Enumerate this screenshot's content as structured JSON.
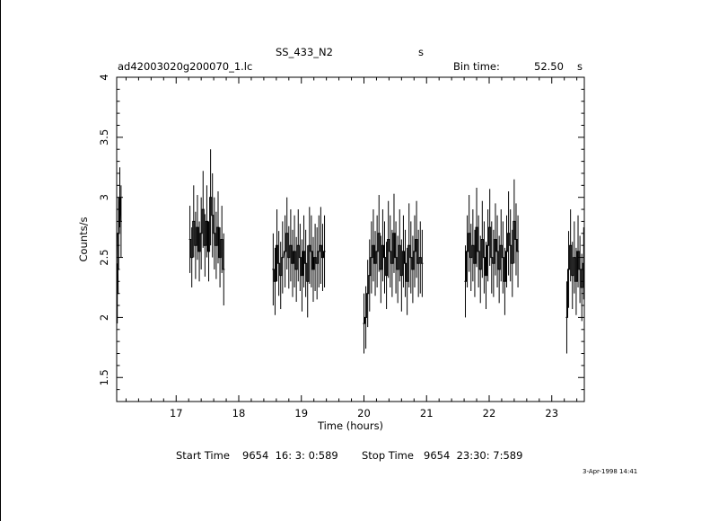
{
  "header": {
    "title": "SS_433_N2",
    "title_suffix": "s",
    "filename": "ad42003020g200070_1.lc",
    "bin_label": "Bin time:",
    "bin_value": "52.50",
    "bin_unit": "s"
  },
  "footer": {
    "start_label": "Start Time",
    "start_value": "9654  16: 3: 0:589",
    "stop_label": "Stop Time",
    "stop_value": "9654  23:30: 7:589",
    "timestamp": "3-Apr-1998 14:41"
  },
  "chart_data": {
    "type": "line",
    "xlabel": "Time (hours)",
    "ylabel": "Counts/s",
    "xlim": [
      16.05,
      23.52
    ],
    "ylim": [
      1.3,
      4.0
    ],
    "xticks": [
      17,
      18,
      19,
      20,
      21,
      22,
      23
    ],
    "yticks": [
      1.5,
      2,
      2.5,
      3,
      3.5,
      4
    ],
    "ytick_labels": [
      "1.5",
      "2",
      "2.5",
      "3",
      "3.5",
      "4"
    ],
    "grid": false,
    "segments": [
      {
        "x": [
          16.06,
          16.08,
          16.1,
          16.12
        ],
        "y": [
          2.2,
          2.7,
          3.0,
          2.8
        ],
        "err": [
          0.25,
          0.3,
          0.25,
          0.3
        ]
      },
      {
        "x": [
          17.22,
          17.25,
          17.28,
          17.31,
          17.34,
          17.37,
          17.4,
          17.43,
          17.46,
          17.49,
          17.52,
          17.55,
          17.58,
          17.61,
          17.64,
          17.67,
          17.7,
          17.73,
          17.76
        ],
        "y": [
          2.65,
          2.5,
          2.8,
          2.6,
          2.75,
          2.55,
          2.7,
          2.9,
          2.6,
          2.8,
          2.55,
          3.0,
          2.85,
          2.7,
          2.6,
          2.75,
          2.5,
          2.65,
          2.4
        ],
        "err": [
          0.28,
          0.25,
          0.3,
          0.28,
          0.27,
          0.25,
          0.3,
          0.32,
          0.26,
          0.3,
          0.25,
          0.4,
          0.35,
          0.3,
          0.28,
          0.3,
          0.25,
          0.28,
          0.3
        ]
      },
      {
        "x": [
          18.55,
          18.58,
          18.61,
          18.64,
          18.67,
          18.7,
          18.74,
          18.77,
          18.8,
          18.83,
          18.86,
          18.89,
          18.92,
          18.95,
          18.98,
          19.01,
          19.04,
          19.07,
          19.1,
          19.13,
          19.16,
          19.19,
          19.22,
          19.25,
          19.28,
          19.31,
          19.34,
          19.37
        ],
        "y": [
          2.4,
          2.3,
          2.6,
          2.45,
          2.35,
          2.5,
          2.55,
          2.7,
          2.5,
          2.6,
          2.45,
          2.55,
          2.4,
          2.6,
          2.5,
          2.35,
          2.55,
          2.45,
          2.3,
          2.6,
          2.55,
          2.4,
          2.5,
          2.45,
          2.55,
          2.6,
          2.5,
          2.55
        ],
        "err": [
          0.3,
          0.28,
          0.3,
          0.27,
          0.28,
          0.3,
          0.3,
          0.3,
          0.26,
          0.3,
          0.28,
          0.3,
          0.27,
          0.3,
          0.28,
          0.3,
          0.3,
          0.28,
          0.3,
          0.32,
          0.3,
          0.27,
          0.28,
          0.3,
          0.3,
          0.32,
          0.28,
          0.3
        ]
      },
      {
        "x": [
          20.0,
          20.03,
          20.06,
          20.09,
          20.12,
          20.15,
          20.18,
          20.21,
          20.24,
          20.27,
          20.3,
          20.33,
          20.36,
          20.39,
          20.42,
          20.45,
          20.48,
          20.51,
          20.54,
          20.57,
          20.6,
          20.63,
          20.66,
          20.69,
          20.72,
          20.75,
          20.78,
          20.81,
          20.84,
          20.87,
          20.9,
          20.93
        ],
        "y": [
          1.95,
          2.0,
          2.2,
          2.35,
          2.5,
          2.6,
          2.45,
          2.55,
          2.7,
          2.4,
          2.6,
          2.5,
          2.35,
          2.65,
          2.55,
          2.45,
          2.7,
          2.5,
          2.4,
          2.6,
          2.35,
          2.55,
          2.45,
          2.3,
          2.6,
          2.5,
          2.4,
          2.55,
          2.65,
          2.45,
          2.5,
          2.45
        ],
        "err": [
          0.25,
          0.26,
          0.28,
          0.3,
          0.3,
          0.3,
          0.27,
          0.3,
          0.32,
          0.28,
          0.3,
          0.3,
          0.28,
          0.32,
          0.3,
          0.28,
          0.33,
          0.3,
          0.28,
          0.3,
          0.3,
          0.3,
          0.28,
          0.28,
          0.35,
          0.3,
          0.28,
          0.3,
          0.32,
          0.28,
          0.3,
          0.28
        ]
      },
      {
        "x": [
          21.62,
          21.65,
          21.68,
          21.71,
          21.74,
          21.77,
          21.8,
          21.83,
          21.86,
          21.89,
          21.92,
          21.95,
          21.98,
          22.01,
          22.04,
          22.07,
          22.1,
          22.13,
          22.16,
          22.19,
          22.22,
          22.25,
          22.28,
          22.31,
          22.34,
          22.37,
          22.4,
          22.43,
          22.46
        ],
        "y": [
          2.3,
          2.55,
          2.7,
          2.5,
          2.6,
          2.45,
          2.75,
          2.55,
          2.4,
          2.65,
          2.5,
          2.35,
          2.6,
          2.75,
          2.5,
          2.45,
          2.65,
          2.55,
          2.4,
          2.6,
          2.5,
          2.3,
          2.55,
          2.7,
          2.6,
          2.45,
          2.8,
          2.65,
          2.55
        ],
        "err": [
          0.3,
          0.3,
          0.32,
          0.28,
          0.3,
          0.28,
          0.33,
          0.3,
          0.28,
          0.32,
          0.3,
          0.28,
          0.3,
          0.32,
          0.3,
          0.28,
          0.3,
          0.3,
          0.28,
          0.3,
          0.3,
          0.28,
          0.3,
          0.35,
          0.3,
          0.28,
          0.35,
          0.3,
          0.3
        ]
      },
      {
        "x": [
          23.24,
          23.27,
          23.3,
          23.33,
          23.36,
          23.39,
          23.42,
          23.45,
          23.48,
          23.51
        ],
        "y": [
          2.0,
          2.4,
          2.6,
          2.35,
          2.5,
          2.3,
          2.55,
          2.4,
          2.25,
          2.45
        ],
        "err": [
          0.3,
          0.32,
          0.3,
          0.28,
          0.3,
          0.28,
          0.3,
          0.28,
          0.28,
          0.3
        ]
      }
    ]
  }
}
